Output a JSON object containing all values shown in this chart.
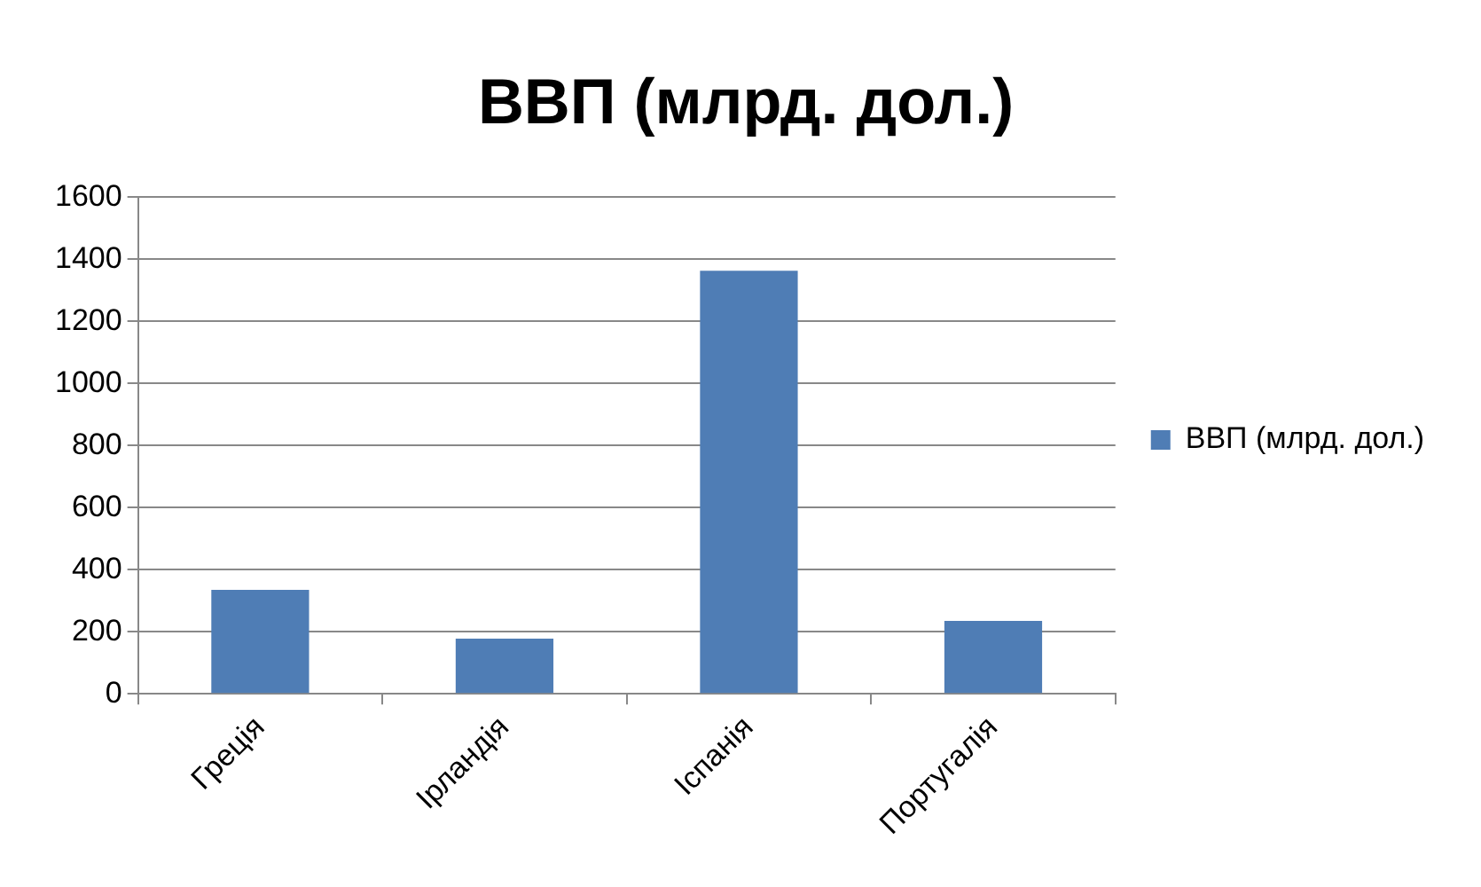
{
  "chart_data": {
    "type": "bar",
    "title": "ВВП (млрд. дол.)",
    "categories": [
      "Греція",
      "Ірландія",
      "Іспанія",
      "Португалія"
    ],
    "series": [
      {
        "name": "ВВП (млрд. дол.)",
        "color": "#4f7db5",
        "values": [
          335,
          178,
          1363,
          235
        ]
      }
    ],
    "ylim": [
      0,
      1600
    ],
    "yticks": [
      0,
      200,
      400,
      600,
      800,
      1000,
      1200,
      1400,
      1600
    ],
    "grid": "y",
    "legend": "right"
  }
}
